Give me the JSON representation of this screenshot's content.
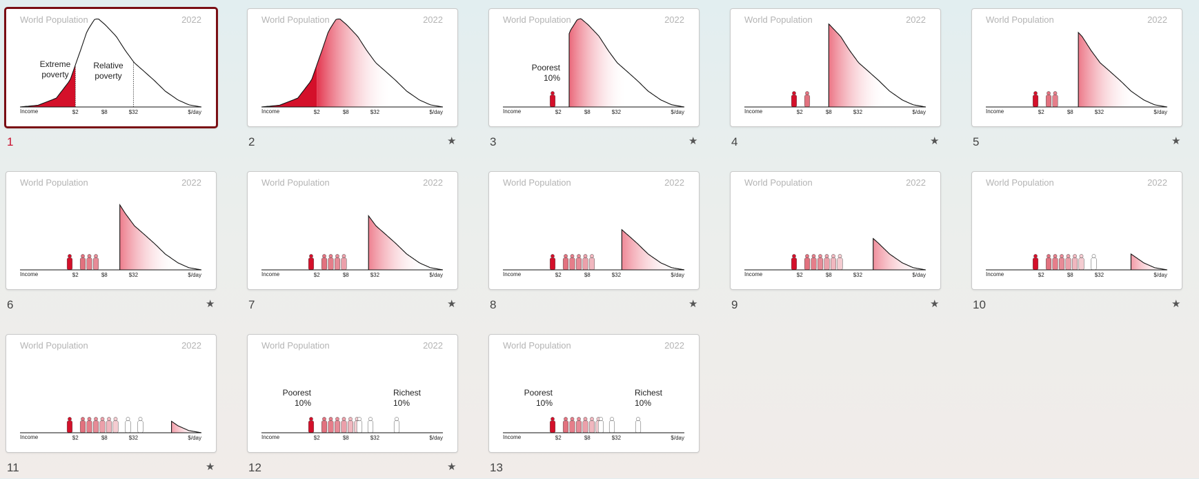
{
  "slide_title": "World Population",
  "slide_year": "2022",
  "axis": {
    "left": "Income",
    "ticks": [
      "$2",
      "$8",
      "$32"
    ],
    "right": "$/day"
  },
  "labels": {
    "extreme_poverty": [
      "Extreme",
      "poverty"
    ],
    "relative_poverty": [
      "Relative",
      "poverty"
    ],
    "poorest": [
      "Poorest",
      "10%"
    ],
    "richest": [
      "Richest",
      "10%"
    ]
  },
  "colors": {
    "selected_border": "#7a0e14",
    "selected_number": "#c8102e",
    "accent": "#d4102a"
  },
  "slides": [
    {
      "number": "1",
      "selected": true,
      "starred": false,
      "people": 0,
      "cut": null
    },
    {
      "number": "2",
      "selected": false,
      "starred": true,
      "people": 0,
      "cut": 0.31
    },
    {
      "number": "3",
      "selected": false,
      "starred": true,
      "people": 1,
      "cut": 0.365
    },
    {
      "number": "4",
      "selected": false,
      "starred": true,
      "people": 2,
      "cut": 0.465
    },
    {
      "number": "5",
      "selected": false,
      "starred": true,
      "people": 3,
      "cut": 0.51
    },
    {
      "number": "6",
      "selected": false,
      "starred": true,
      "people": 4,
      "cut": 0.55
    },
    {
      "number": "7",
      "selected": false,
      "starred": true,
      "people": 5,
      "cut": 0.59
    },
    {
      "number": "8",
      "selected": false,
      "starred": true,
      "people": 6,
      "cut": 0.655
    },
    {
      "number": "9",
      "selected": false,
      "starred": true,
      "people": 7,
      "cut": 0.71
    },
    {
      "number": "10",
      "selected": false,
      "starred": true,
      "people": 8,
      "cut": 0.8
    },
    {
      "number": "11",
      "selected": false,
      "starred": true,
      "people": 9,
      "cut": 0.835
    },
    {
      "number": "12",
      "selected": false,
      "starred": true,
      "people": 10,
      "cut": 1.0
    },
    {
      "number": "13",
      "selected": false,
      "starred": false,
      "people": 10,
      "cut": 1.0
    }
  ],
  "star_glyph": "★"
}
